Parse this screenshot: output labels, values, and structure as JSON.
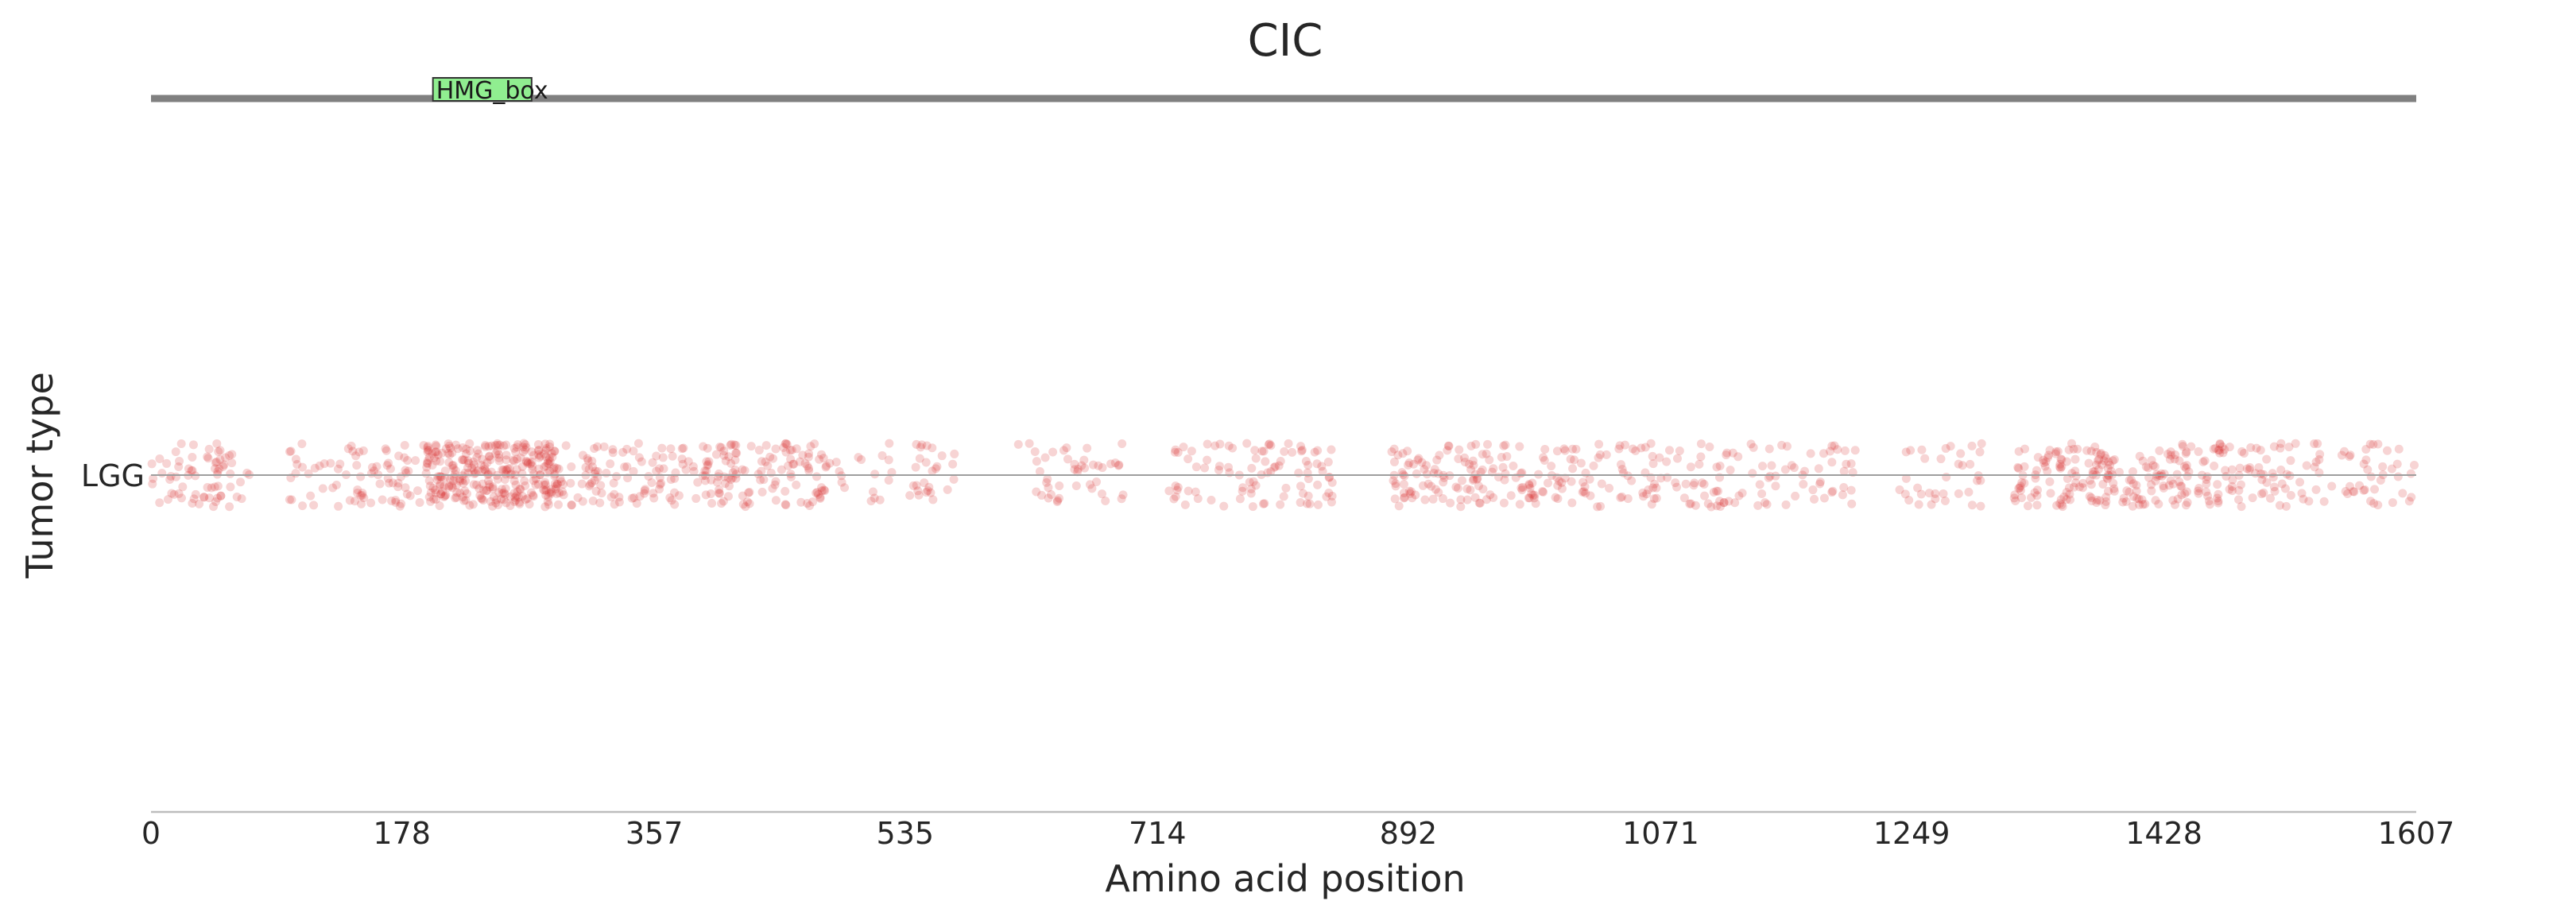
{
  "chart_data": {
    "type": "scatter",
    "title": "CIC",
    "xlabel": "Amino acid position",
    "ylabel": "Tumor type",
    "xlim": [
      0,
      1607
    ],
    "x_ticks": [
      "0",
      "178",
      "357",
      "535",
      "714",
      "892",
      "1071",
      "1249",
      "1428",
      "1607"
    ],
    "categories": [
      "LGG"
    ],
    "protein_length": 1607,
    "domains": [
      {
        "name": "HMG_box",
        "start": 200,
        "end": 270,
        "color": "#90ee90"
      }
    ],
    "series": [
      {
        "category": "LGG",
        "color": "#d62728",
        "point_opacity": 0.2,
        "clusters": [
          {
            "start": 0,
            "end": 70,
            "count": 70
          },
          {
            "start": 95,
            "end": 130,
            "count": 20
          },
          {
            "start": 130,
            "end": 195,
            "count": 60
          },
          {
            "start": 195,
            "end": 290,
            "count": 300
          },
          {
            "start": 290,
            "end": 330,
            "count": 45
          },
          {
            "start": 330,
            "end": 400,
            "count": 70
          },
          {
            "start": 400,
            "end": 480,
            "count": 110
          },
          {
            "start": 480,
            "end": 570,
            "count": 45
          },
          {
            "start": 615,
            "end": 690,
            "count": 45
          },
          {
            "start": 720,
            "end": 770,
            "count": 30
          },
          {
            "start": 770,
            "end": 840,
            "count": 65
          },
          {
            "start": 880,
            "end": 990,
            "count": 130
          },
          {
            "start": 990,
            "end": 1060,
            "count": 55
          },
          {
            "start": 1060,
            "end": 1130,
            "count": 60
          },
          {
            "start": 1130,
            "end": 1210,
            "count": 50
          },
          {
            "start": 1240,
            "end": 1300,
            "count": 35
          },
          {
            "start": 1320,
            "end": 1390,
            "count": 110
          },
          {
            "start": 1390,
            "end": 1470,
            "count": 110
          },
          {
            "start": 1470,
            "end": 1540,
            "count": 65
          },
          {
            "start": 1540,
            "end": 1607,
            "count": 40
          }
        ]
      }
    ]
  }
}
